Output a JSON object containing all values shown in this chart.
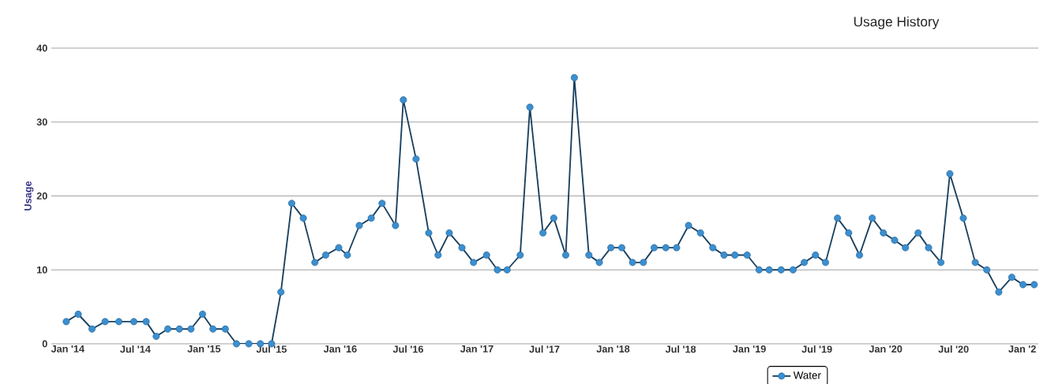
{
  "chart_data": {
    "type": "line",
    "title": "Usage History",
    "ylabel": "Usage",
    "x": [
      "2013-12-28",
      "2014-01-29",
      "2014-03-07",
      "2014-04-11",
      "2014-05-18",
      "2014-06-27",
      "2014-07-30",
      "2014-08-26",
      "2014-09-26",
      "2014-10-27",
      "2014-11-27",
      "2014-12-28",
      "2015-01-25",
      "2015-02-27",
      "2015-03-29",
      "2015-05-01",
      "2015-06-01",
      "2015-07-01",
      "2015-07-26",
      "2015-08-24",
      "2015-09-24",
      "2015-10-25",
      "2015-11-23",
      "2015-12-28",
      "2016-01-20",
      "2016-02-21",
      "2016-03-24",
      "2016-04-22",
      "2016-05-28",
      "2016-06-18",
      "2016-07-22",
      "2016-08-25",
      "2016-09-19",
      "2016-10-19",
      "2016-11-22",
      "2016-12-23",
      "2017-01-27",
      "2017-02-25",
      "2017-03-23",
      "2017-04-27",
      "2017-05-23",
      "2017-06-27",
      "2017-07-26",
      "2017-08-27",
      "2017-09-19",
      "2017-10-28",
      "2017-11-25",
      "2017-12-26",
      "2018-01-24",
      "2018-02-22",
      "2018-03-23",
      "2018-04-21",
      "2018-05-22",
      "2018-06-20",
      "2018-07-22",
      "2018-08-23",
      "2018-09-25",
      "2018-10-25",
      "2018-11-23",
      "2018-12-26",
      "2019-01-27",
      "2019-02-23",
      "2019-03-27",
      "2019-04-28",
      "2019-05-28",
      "2019-06-27",
      "2019-07-24",
      "2019-08-25",
      "2019-09-24",
      "2019-10-23",
      "2019-11-26",
      "2019-12-26",
      "2020-01-25",
      "2020-02-23",
      "2020-03-28",
      "2020-04-25",
      "2020-05-28",
      "2020-06-21",
      "2020-07-27",
      "2020-08-28",
      "2020-09-28",
      "2020-10-30",
      "2020-12-04",
      "2021-01-03",
      "2021-02-02"
    ],
    "series": [
      {
        "name": "Water",
        "color": "#3a8fd0",
        "values": [
          3,
          4,
          2,
          3,
          3,
          3,
          3,
          1,
          2,
          2,
          2,
          4,
          2,
          2,
          0,
          0,
          0,
          0,
          7,
          19,
          17,
          11,
          12,
          13,
          12,
          16,
          17,
          19,
          16,
          33,
          25,
          15,
          12,
          15,
          13,
          11,
          12,
          10,
          10,
          12,
          32,
          15,
          17,
          12,
          36,
          12,
          11,
          13,
          13,
          11,
          11,
          13,
          13,
          13,
          16,
          15,
          13,
          12,
          12,
          12,
          10,
          10,
          10,
          10,
          11,
          12,
          11,
          17,
          15,
          12,
          17,
          15,
          14,
          13,
          15,
          13,
          11,
          23,
          17,
          11,
          10,
          7,
          9,
          8,
          8
        ]
      }
    ],
    "xlim": [
      "2013-11-18",
      "2021-02-13"
    ],
    "xticks": [
      {
        "value": "2014-01-01",
        "label": "Jan '14"
      },
      {
        "value": "2014-07-01",
        "label": "Jul '14"
      },
      {
        "value": "2015-01-01",
        "label": "Jan '15"
      },
      {
        "value": "2015-07-01",
        "label": "Jul '15"
      },
      {
        "value": "2016-01-01",
        "label": "Jan '16"
      },
      {
        "value": "2016-07-01",
        "label": "Jul '16"
      },
      {
        "value": "2017-01-01",
        "label": "Jan '17"
      },
      {
        "value": "2017-07-01",
        "label": "Jul '17"
      },
      {
        "value": "2018-01-01",
        "label": "Jan '18"
      },
      {
        "value": "2018-07-01",
        "label": "Jul '18"
      },
      {
        "value": "2019-01-01",
        "label": "Jan '19"
      },
      {
        "value": "2019-07-01",
        "label": "Jul '19"
      },
      {
        "value": "2020-01-01",
        "label": "Jan '20"
      },
      {
        "value": "2020-07-01",
        "label": "Jul '20"
      },
      {
        "value": "2021-01-01",
        "label": "Jan '2"
      }
    ],
    "ylim": [
      0,
      40
    ],
    "yticks": [
      0,
      10,
      20,
      30,
      40
    ],
    "grid": "y",
    "legend": "bottom",
    "marker": "circle",
    "line_style": "solid"
  }
}
